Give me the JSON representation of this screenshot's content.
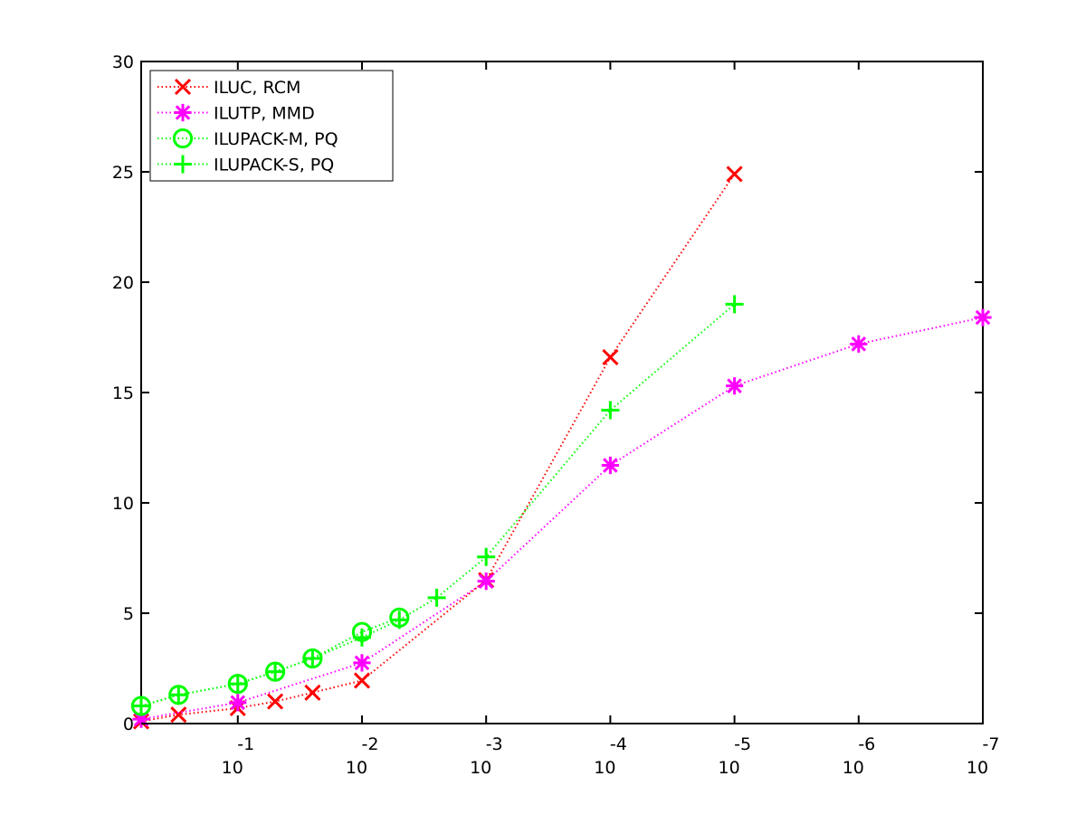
{
  "chart_data": {
    "type": "line",
    "title": "",
    "xlabel": "",
    "ylabel": "",
    "x_scale": "log",
    "xlim": [
      0.6,
      1e-07
    ],
    "ylim": [
      0,
      30
    ],
    "x_ticks": [
      {
        "base": "10",
        "exp": "-1",
        "value": 0.1
      },
      {
        "base": "10",
        "exp": "-2",
        "value": 0.01
      },
      {
        "base": "10",
        "exp": "-3",
        "value": 0.001
      },
      {
        "base": "10",
        "exp": "-4",
        "value": 0.0001
      },
      {
        "base": "10",
        "exp": "-5",
        "value": 1e-05
      },
      {
        "base": "10",
        "exp": "-6",
        "value": 1e-06
      },
      {
        "base": "10",
        "exp": "-7",
        "value": 1e-07
      }
    ],
    "y_ticks": [
      "0",
      "5",
      "10",
      "15",
      "20",
      "25",
      "30"
    ],
    "grid": false,
    "legend_position": "top-left",
    "series": [
      {
        "name": "ILUC, RCM",
        "color": "#ff0000",
        "marker": "x",
        "points": [
          [
            0.6,
            0.1
          ],
          [
            0.3,
            0.4
          ],
          [
            0.1,
            0.7
          ],
          [
            0.05,
            1.0
          ],
          [
            0.025,
            1.4
          ],
          [
            0.01,
            1.95
          ],
          [
            0.001,
            6.5
          ],
          [
            0.0001,
            16.6
          ],
          [
            1e-05,
            24.9
          ]
        ]
      },
      {
        "name": "ILUTP, MMD",
        "color": "#ff00ff",
        "marker": "asterisk",
        "points": [
          [
            0.6,
            0.2
          ],
          [
            0.1,
            0.95
          ],
          [
            0.01,
            2.75
          ],
          [
            0.001,
            6.45
          ],
          [
            0.0001,
            11.7
          ],
          [
            1e-05,
            15.3
          ],
          [
            1e-06,
            17.2
          ],
          [
            1e-07,
            18.4
          ]
        ]
      },
      {
        "name": "ILUPACK-M, PQ",
        "color": "#00ff00",
        "marker": "circle",
        "points": [
          [
            0.6,
            0.8
          ],
          [
            0.3,
            1.3
          ],
          [
            0.1,
            1.8
          ],
          [
            0.05,
            2.35
          ],
          [
            0.025,
            2.95
          ],
          [
            0.01,
            4.15
          ],
          [
            0.005,
            4.8
          ]
        ]
      },
      {
        "name": "ILUPACK-S, PQ",
        "color": "#00ff00",
        "marker": "plus",
        "points": [
          [
            0.6,
            0.8
          ],
          [
            0.3,
            1.3
          ],
          [
            0.1,
            1.8
          ],
          [
            0.05,
            2.35
          ],
          [
            0.025,
            2.95
          ],
          [
            0.01,
            3.9
          ],
          [
            0.005,
            4.7
          ],
          [
            0.0025,
            5.7
          ],
          [
            0.001,
            7.55
          ],
          [
            0.0001,
            14.2
          ],
          [
            1e-05,
            19.0
          ]
        ]
      }
    ]
  }
}
